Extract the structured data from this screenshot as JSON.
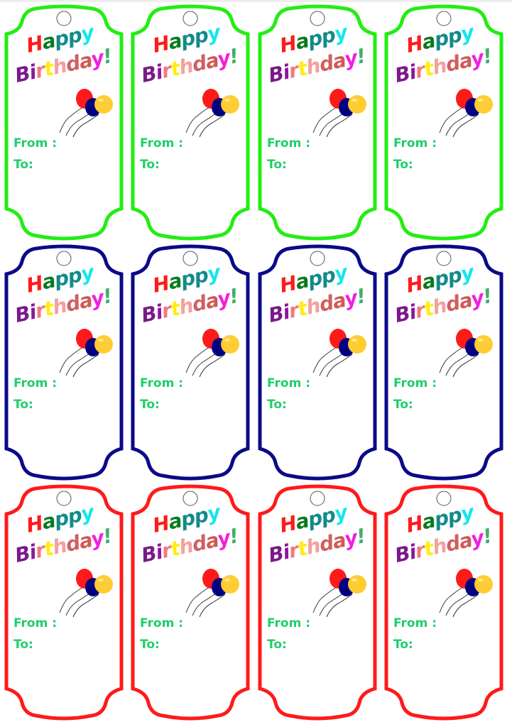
{
  "tag": {
    "happy": [
      "H",
      "a",
      "p",
      "p",
      "y"
    ],
    "happy_colors": [
      "#ff1a1a",
      "#0a7a20",
      "#128a8a",
      "#128a8a",
      "#10e8f0"
    ],
    "birthday": [
      "B",
      "i",
      "r",
      "t",
      "h",
      "d",
      "a",
      "y",
      "!"
    ],
    "birthday_colors": [
      "#7a1a8a",
      "#8a1a9a",
      "#f07a7a",
      "#ffee10",
      "#f5a0a0",
      "#d06060",
      "#d05a5a",
      "#f020e0",
      "#40b070"
    ],
    "from_label": "From :",
    "to_label": "To:",
    "label_color": "#1fcf6a",
    "balloon_colors": [
      "#ff1a1a",
      "#000080",
      "#ffcc33"
    ]
  },
  "rows": [
    {
      "border_color": "#22ee11"
    },
    {
      "border_color": "#0a0a88"
    },
    {
      "border_color": "#ff1a1a"
    }
  ],
  "columns": 4
}
